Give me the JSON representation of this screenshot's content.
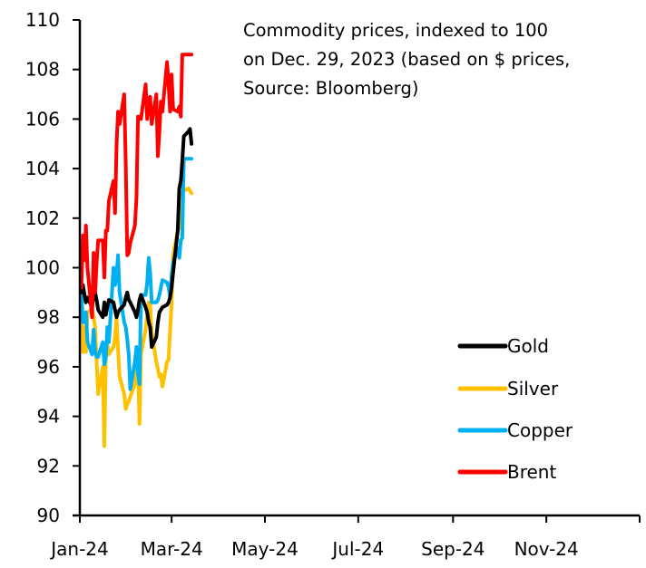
{
  "chart_data": {
    "type": "line",
    "title": "Commodity prices, indexed to 100 on Dec. 29, 2023 (based on $ prices, Source: Bloomberg)",
    "title_lines": [
      "Commodity prices, indexed to 100",
      "on Dec. 29, 2023 (based on $ prices,",
      "Source: Bloomberg)"
    ],
    "xlabel": "",
    "ylabel": "",
    "x_unit": "days since Jan 1, 2024",
    "xlim": [
      0,
      366
    ],
    "ylim": [
      90,
      110
    ],
    "yticks": [
      90,
      92,
      94,
      96,
      98,
      100,
      102,
      104,
      106,
      108,
      110
    ],
    "ytick_labels": [
      "90",
      "92",
      "94",
      "96",
      "98",
      "100",
      "102",
      "104",
      "106",
      "108",
      "110"
    ],
    "xticks": [
      0,
      60,
      121,
      182,
      244,
      305,
      366
    ],
    "xtick_labels": [
      "Jan-24",
      "Mar-24",
      "May-24",
      "Jul-24",
      "Sep-24",
      "Nov-24",
      ""
    ],
    "grid": false,
    "legend_position": "bottom-right",
    "series": [
      {
        "name": "Gold",
        "color": "#000000",
        "x": [
          1,
          2,
          3,
          4,
          5,
          8,
          9,
          10,
          11,
          12,
          15,
          16,
          17,
          18,
          19,
          22,
          23,
          24,
          25,
          26,
          29,
          30,
          31,
          32,
          33,
          36,
          37,
          38,
          39,
          40,
          43,
          44,
          45,
          46,
          47,
          50,
          51,
          52,
          53,
          54,
          57,
          58,
          59,
          60,
          61,
          64,
          65,
          66,
          67,
          68,
          71,
          72,
          73
        ],
        "y": [
          99.0,
          99.3,
          98.9,
          98.6,
          98.8,
          98.4,
          98.9,
          99.0,
          98.7,
          98.3,
          98.0,
          98.6,
          98.1,
          98.4,
          98.7,
          98.6,
          98.3,
          98.0,
          98.2,
          98.3,
          98.5,
          98.8,
          99.0,
          98.7,
          98.6,
          98.2,
          98.0,
          98.3,
          98.7,
          98.9,
          98.4,
          98.2,
          97.8,
          97.6,
          96.8,
          97.2,
          97.8,
          98.2,
          98.3,
          98.4,
          98.5,
          98.6,
          98.8,
          99.2,
          99.8,
          101.5,
          103.2,
          103.5,
          104.3,
          105.3,
          105.5,
          105.6,
          105.0
        ],
        "values_note": "approximate, read from chart"
      },
      {
        "name": "Silver",
        "color": "#FFC000",
        "x": [
          1,
          2,
          3,
          4,
          5,
          8,
          9,
          10,
          11,
          12,
          15,
          16,
          17,
          18,
          19,
          22,
          23,
          24,
          25,
          26,
          29,
          30,
          31,
          32,
          33,
          36,
          37,
          38,
          39,
          40,
          43,
          44,
          45,
          46,
          47,
          50,
          51,
          52,
          53,
          54,
          57,
          58,
          59,
          60,
          61,
          64,
          65,
          66,
          67,
          68,
          71,
          72,
          73
        ],
        "y": [
          98.0,
          96.6,
          97.6,
          96.6,
          98.2,
          98.3,
          98.0,
          97.6,
          96.2,
          94.9,
          96.0,
          92.8,
          96.5,
          96.9,
          96.5,
          96.8,
          97.2,
          98.0,
          96.7,
          95.6,
          94.9,
          94.3,
          94.5,
          94.6,
          94.8,
          95.3,
          96.0,
          96.1,
          93.7,
          96.5,
          97.5,
          98.1,
          98.6,
          98.5,
          97.4,
          96.2,
          95.9,
          95.6,
          95.7,
          95.2,
          96.2,
          96.3,
          97.5,
          98.5,
          100.5,
          101.5,
          101.6,
          102.9,
          103.0,
          103.1,
          103.2,
          103.1,
          103.0
        ]
      },
      {
        "name": "Copper",
        "color": "#00B0F0",
        "x": [
          1,
          2,
          3,
          4,
          5,
          8,
          9,
          10,
          11,
          12,
          15,
          16,
          17,
          18,
          19,
          22,
          23,
          24,
          25,
          26,
          29,
          30,
          31,
          32,
          33,
          36,
          37,
          38,
          39,
          40,
          43,
          44,
          45,
          46,
          47,
          50,
          51,
          52,
          53,
          54,
          57,
          58,
          59,
          60,
          61,
          64,
          65,
          66,
          67,
          68,
          71,
          72,
          73
        ],
        "y": [
          99.0,
          97.8,
          97.8,
          98.2,
          97.0,
          96.5,
          97.5,
          96.6,
          96.4,
          96.4,
          97.0,
          96.1,
          96.4,
          97.6,
          97.0,
          100.0,
          99.3,
          99.7,
          100.5,
          99.0,
          97.8,
          97.6,
          97.1,
          96.5,
          95.1,
          96.2,
          96.8,
          95.7,
          95.3,
          98.9,
          98.9,
          99.4,
          100.4,
          99.8,
          98.6,
          98.6,
          98.7,
          98.9,
          99.2,
          99.5,
          99.4,
          99.2,
          98.8,
          99.7,
          100.2,
          100.8,
          100.4,
          101.1,
          101.2,
          104.4,
          104.4,
          104.4,
          104.4
        ]
      },
      {
        "name": "Brent",
        "color": "#FF0000",
        "x": [
          1,
          2,
          3,
          4,
          5,
          8,
          9,
          10,
          11,
          12,
          15,
          16,
          17,
          18,
          19,
          22,
          23,
          24,
          25,
          26,
          29,
          30,
          31,
          32,
          33,
          36,
          37,
          38,
          39,
          40,
          43,
          44,
          45,
          46,
          47,
          50,
          51,
          52,
          53,
          54,
          57,
          58,
          59,
          60,
          61,
          64,
          65,
          66,
          67,
          68,
          71,
          72,
          73
        ],
        "y": [
          99.2,
          101.3,
          100.3,
          101.7,
          100.0,
          98.0,
          100.6,
          99.0,
          100.2,
          101.1,
          101.1,
          99.6,
          101.5,
          101.5,
          102.7,
          103.5,
          102.2,
          105.0,
          106.3,
          105.8,
          107.0,
          104.2,
          100.5,
          100.6,
          101.0,
          101.7,
          102.8,
          106.1,
          106.1,
          106.0,
          107.4,
          106.0,
          106.8,
          106.9,
          105.8,
          107.0,
          104.5,
          105.5,
          106.7,
          106.3,
          108.3,
          107.4,
          106.3,
          107.8,
          106.4,
          106.3,
          106.5,
          106.1,
          108.6,
          108.6,
          108.6,
          108.6,
          108.6
        ]
      }
    ]
  }
}
